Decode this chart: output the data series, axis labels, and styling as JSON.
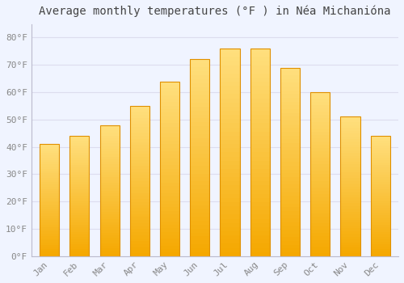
{
  "title": "Average monthly temperatures (°F ) in Néa Michanióna",
  "months": [
    "Jan",
    "Feb",
    "Mar",
    "Apr",
    "May",
    "Jun",
    "Jul",
    "Aug",
    "Sep",
    "Oct",
    "Nov",
    "Dec"
  ],
  "values": [
    41,
    44,
    48,
    55,
    64,
    72,
    76,
    76,
    69,
    60,
    51,
    44
  ],
  "bar_color_bottom": "#F5A800",
  "bar_color_top": "#FFE080",
  "bar_edge_color": "#E09000",
  "background_color": "#F0F4FF",
  "plot_bg_color": "#F0F4FF",
  "grid_color": "#DDDDEE",
  "yticks": [
    0,
    10,
    20,
    30,
    40,
    50,
    60,
    70,
    80
  ],
  "ylim": [
    0,
    85
  ],
  "title_fontsize": 10,
  "tick_fontsize": 8,
  "tick_color": "#888888",
  "title_color": "#444444",
  "bar_width": 0.65
}
